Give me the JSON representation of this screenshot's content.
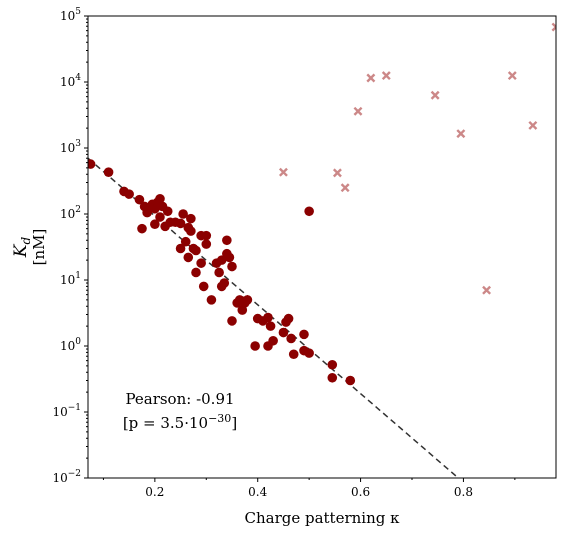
{
  "chart_data": {
    "type": "scatter",
    "xlabel": "Charge patterning κ",
    "ylabel_main": "K",
    "ylabel_sub": "d",
    "ylabel_unit": "[nM]",
    "x_range": [
      0.07,
      0.98
    ],
    "y_range": [
      0.01,
      100000
    ],
    "y_scale": "log",
    "x_ticks": [
      0.2,
      0.4,
      0.6,
      0.8
    ],
    "x_tick_labels": [
      "0.2",
      "0.4",
      "0.6",
      "0.8"
    ],
    "y_ticks": [
      0.01,
      0.1,
      1,
      10,
      100,
      1000,
      10000,
      100000
    ],
    "y_tick_labels": [
      {
        "base": "10",
        "exp": "−2"
      },
      {
        "base": "10",
        "exp": "−1"
      },
      {
        "base": "10",
        "exp": "0"
      },
      {
        "base": "10",
        "exp": "1"
      },
      {
        "base": "10",
        "exp": "2"
      },
      {
        "base": "10",
        "exp": "3"
      },
      {
        "base": "10",
        "exp": "4"
      },
      {
        "base": "10",
        "exp": "5"
      }
    ],
    "grid": false,
    "annotation": {
      "line1": "Pearson: -0.91",
      "line2_prefix": "[p = 3.5·10",
      "line2_exp": "−30",
      "line2_suffix": "]"
    },
    "fit_line": {
      "style": "dashed",
      "color": "#333333",
      "x1": 0.07,
      "y1": 700,
      "x2": 0.79,
      "y2": 0.01
    },
    "series": [
      {
        "marker": "circle",
        "color": "#8b0000",
        "points": [
          [
            0.075,
            570
          ],
          [
            0.11,
            430
          ],
          [
            0.14,
            220
          ],
          [
            0.15,
            200
          ],
          [
            0.17,
            165
          ],
          [
            0.18,
            130
          ],
          [
            0.175,
            60
          ],
          [
            0.185,
            105
          ],
          [
            0.19,
            125
          ],
          [
            0.195,
            140
          ],
          [
            0.2,
            120
          ],
          [
            0.2,
            70
          ],
          [
            0.205,
            150
          ],
          [
            0.21,
            170
          ],
          [
            0.21,
            90
          ],
          [
            0.215,
            130
          ],
          [
            0.22,
            65
          ],
          [
            0.225,
            110
          ],
          [
            0.23,
            75
          ],
          [
            0.24,
            75
          ],
          [
            0.25,
            72
          ],
          [
            0.25,
            30
          ],
          [
            0.255,
            100
          ],
          [
            0.26,
            38
          ],
          [
            0.265,
            62
          ],
          [
            0.27,
            55
          ],
          [
            0.265,
            22
          ],
          [
            0.27,
            85
          ],
          [
            0.275,
            30
          ],
          [
            0.28,
            13
          ],
          [
            0.28,
            28
          ],
          [
            0.29,
            47
          ],
          [
            0.29,
            18
          ],
          [
            0.295,
            8
          ],
          [
            0.3,
            47
          ],
          [
            0.3,
            35
          ],
          [
            0.31,
            5
          ],
          [
            0.32,
            18
          ],
          [
            0.325,
            13
          ],
          [
            0.33,
            8
          ],
          [
            0.33,
            20
          ],
          [
            0.335,
            9
          ],
          [
            0.34,
            25
          ],
          [
            0.34,
            40
          ],
          [
            0.345,
            22
          ],
          [
            0.35,
            16
          ],
          [
            0.35,
            2.4
          ],
          [
            0.36,
            4.5
          ],
          [
            0.365,
            5
          ],
          [
            0.37,
            3.5
          ],
          [
            0.375,
            4.5
          ],
          [
            0.37,
            4.8
          ],
          [
            0.38,
            5
          ],
          [
            0.395,
            1
          ],
          [
            0.4,
            2.6
          ],
          [
            0.41,
            2.4
          ],
          [
            0.42,
            1
          ],
          [
            0.425,
            2
          ],
          [
            0.43,
            1.2
          ],
          [
            0.42,
            2.7
          ],
          [
            0.45,
            1.6
          ],
          [
            0.455,
            2.3
          ],
          [
            0.46,
            2.6
          ],
          [
            0.465,
            1.3
          ],
          [
            0.47,
            0.75
          ],
          [
            0.49,
            1.5
          ],
          [
            0.49,
            0.85
          ],
          [
            0.5,
            0.78
          ],
          [
            0.545,
            0.52
          ],
          [
            0.545,
            0.33
          ],
          [
            0.58,
            0.3
          ],
          [
            0.5,
            110
          ]
        ]
      },
      {
        "marker": "x",
        "color": "#cc8888",
        "points": [
          [
            0.45,
            430
          ],
          [
            0.555,
            420
          ],
          [
            0.57,
            250
          ],
          [
            0.595,
            3600
          ],
          [
            0.62,
            11500
          ],
          [
            0.65,
            12500
          ],
          [
            0.745,
            6300
          ],
          [
            0.795,
            1650
          ],
          [
            0.845,
            7
          ],
          [
            0.895,
            12500
          ],
          [
            0.935,
            2200
          ],
          [
            0.98,
            68000
          ]
        ]
      }
    ]
  }
}
